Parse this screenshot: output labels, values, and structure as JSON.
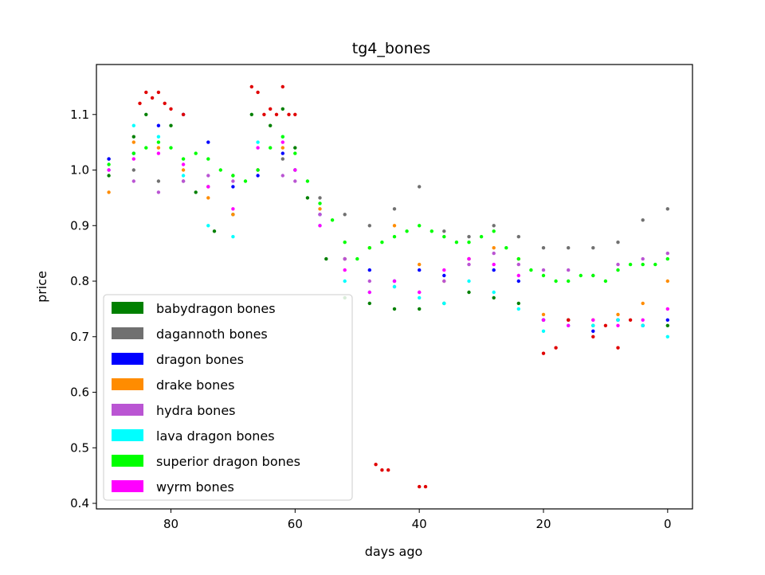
{
  "chart_data": {
    "type": "scatter",
    "title": "tg4_bones",
    "xlabel": "days ago",
    "ylabel": "price",
    "xlim": [
      92,
      -4
    ],
    "ylim": [
      0.39,
      1.19
    ],
    "x_reversed": true,
    "xticks": [
      80,
      60,
      40,
      20,
      0
    ],
    "xtick_labels": [
      "80",
      "60",
      "40",
      "20",
      "0"
    ],
    "yticks": [
      0.4,
      0.5,
      0.6,
      0.7,
      0.8,
      0.9,
      1.0,
      1.1
    ],
    "ytick_labels": [
      "0.4",
      "0.5",
      "0.6",
      "0.7",
      "0.8",
      "0.9",
      "1.0",
      "1.1"
    ],
    "grid": false,
    "legend_position": "lower-left",
    "legend": [
      "babydragon bones",
      "dagannoth bones",
      "dragon bones",
      "drake bones",
      "hydra bones",
      "lava dragon bones",
      "superior dragon bones",
      "wyrm bones"
    ],
    "series": [
      {
        "name": "babydragon bones",
        "color": "#008000",
        "x": [
          90,
          86,
          84,
          80,
          76,
          73,
          70,
          67,
          64,
          62,
          60,
          58,
          55,
          52,
          48,
          44,
          40,
          36,
          32,
          28,
          24,
          20,
          16,
          12,
          8,
          4,
          0
        ],
        "y": [
          0.99,
          1.06,
          1.1,
          1.08,
          0.96,
          0.89,
          0.92,
          1.1,
          1.08,
          1.11,
          1.04,
          0.95,
          0.84,
          0.77,
          0.76,
          0.75,
          0.75,
          0.76,
          0.78,
          0.77,
          0.76,
          0.73,
          0.73,
          0.72,
          0.73,
          0.72,
          0.72
        ]
      },
      {
        "name": "dagannoth bones",
        "color": "#707070",
        "x": [
          90,
          86,
          82,
          78,
          74,
          70,
          66,
          62,
          60,
          56,
          52,
          48,
          44,
          40,
          36,
          32,
          28,
          24,
          20,
          16,
          12,
          8,
          4,
          0
        ],
        "y": [
          1.02,
          1.0,
          0.98,
          0.98,
          0.97,
          0.99,
          1.0,
          1.02,
          1.0,
          0.95,
          0.92,
          0.9,
          0.93,
          0.97,
          0.89,
          0.88,
          0.9,
          0.88,
          0.86,
          0.86,
          0.86,
          0.87,
          0.91,
          0.93
        ]
      },
      {
        "name": "dragon bones",
        "color": "#0000ff",
        "x": [
          90,
          86,
          82,
          78,
          74,
          70,
          66,
          62,
          60,
          56,
          52,
          48,
          44,
          40,
          36,
          32,
          28,
          24,
          20,
          16,
          12,
          8,
          4,
          0
        ],
        "y": [
          1.02,
          1.03,
          1.08,
          1.1,
          1.05,
          0.97,
          0.99,
          1.03,
          1.0,
          0.92,
          0.84,
          0.82,
          0.8,
          0.82,
          0.81,
          0.84,
          0.82,
          0.8,
          0.73,
          0.73,
          0.71,
          0.73,
          0.72,
          0.73
        ]
      },
      {
        "name": "drake bones",
        "color": "#ff8c00",
        "x": [
          90,
          86,
          82,
          78,
          74,
          70,
          66,
          62,
          60,
          56,
          52,
          48,
          44,
          40,
          36,
          32,
          28,
          24,
          20,
          16,
          12,
          8,
          4,
          0
        ],
        "y": [
          0.96,
          1.05,
          1.04,
          1.0,
          0.95,
          0.92,
          1.0,
          1.04,
          1.0,
          0.93,
          0.84,
          0.86,
          0.9,
          0.83,
          0.8,
          0.84,
          0.86,
          0.84,
          0.74,
          0.73,
          0.73,
          0.74,
          0.76,
          0.8
        ]
      },
      {
        "name": "hydra bones",
        "color": "#ba55d3",
        "x": [
          90,
          86,
          82,
          78,
          74,
          70,
          66,
          62,
          60,
          56,
          52,
          48,
          44,
          40,
          36,
          32,
          28,
          24,
          20,
          16,
          12,
          8,
          4,
          0
        ],
        "y": [
          1.0,
          0.98,
          0.96,
          0.98,
          0.99,
          0.98,
          1.0,
          0.99,
          0.98,
          0.92,
          0.84,
          0.8,
          0.79,
          0.78,
          0.8,
          0.83,
          0.85,
          0.83,
          0.82,
          0.82,
          0.81,
          0.83,
          0.84,
          0.85
        ]
      },
      {
        "name": "lava dragon bones",
        "color": "#00ffff",
        "x": [
          90,
          86,
          82,
          78,
          74,
          70,
          66,
          62,
          60,
          56,
          52,
          48,
          44,
          40,
          36,
          32,
          28,
          24,
          20,
          16,
          12,
          8,
          4,
          0
        ],
        "y": [
          1.0,
          1.08,
          1.06,
          0.99,
          0.9,
          0.88,
          1.05,
          1.06,
          1.0,
          0.9,
          0.8,
          0.78,
          0.79,
          0.77,
          0.76,
          0.8,
          0.78,
          0.75,
          0.71,
          0.72,
          0.72,
          0.73,
          0.72,
          0.7
        ]
      },
      {
        "name": "superior dragon bones",
        "color": "#00ff00",
        "x": [
          90,
          86,
          84,
          82,
          80,
          78,
          76,
          74,
          72,
          70,
          68,
          66,
          64,
          62,
          60,
          58,
          56,
          54,
          52,
          50,
          48,
          46,
          44,
          42,
          40,
          38,
          36,
          34,
          32,
          30,
          28,
          26,
          24,
          22,
          20,
          18,
          16,
          14,
          12,
          10,
          8,
          6,
          4,
          2,
          0
        ],
        "y": [
          1.01,
          1.03,
          1.04,
          1.05,
          1.04,
          1.02,
          1.03,
          1.02,
          1.0,
          0.99,
          0.98,
          1.0,
          1.04,
          1.06,
          1.03,
          0.98,
          0.94,
          0.91,
          0.87,
          0.84,
          0.86,
          0.87,
          0.88,
          0.89,
          0.9,
          0.89,
          0.88,
          0.87,
          0.87,
          0.88,
          0.89,
          0.86,
          0.84,
          0.82,
          0.81,
          0.8,
          0.8,
          0.81,
          0.81,
          0.8,
          0.82,
          0.83,
          0.83,
          0.83,
          0.84
        ]
      },
      {
        "name": "wyrm bones",
        "color": "#ff00ff",
        "x": [
          90,
          86,
          82,
          78,
          74,
          70,
          66,
          62,
          60,
          56,
          52,
          48,
          44,
          40,
          36,
          32,
          28,
          24,
          20,
          16,
          12,
          8,
          4,
          0
        ],
        "y": [
          1.0,
          1.02,
          1.03,
          1.01,
          0.97,
          0.93,
          1.04,
          1.05,
          1.0,
          0.9,
          0.82,
          0.78,
          0.8,
          0.78,
          0.82,
          0.84,
          0.83,
          0.81,
          0.73,
          0.72,
          0.73,
          0.72,
          0.73,
          0.75
        ]
      },
      {
        "name": "",
        "color": "#e00000",
        "x": [
          85,
          84,
          83,
          82,
          81,
          80,
          78,
          67,
          66,
          65,
          64,
          63,
          62,
          61,
          60,
          47,
          46,
          45,
          40,
          39,
          20,
          18,
          16,
          12,
          10,
          8,
          6
        ],
        "y": [
          1.12,
          1.14,
          1.13,
          1.14,
          1.12,
          1.11,
          1.1,
          1.15,
          1.14,
          1.1,
          1.11,
          1.1,
          1.15,
          1.1,
          1.1,
          0.47,
          0.46,
          0.46,
          0.43,
          0.43,
          0.67,
          0.68,
          0.73,
          0.7,
          0.72,
          0.68,
          0.73
        ]
      }
    ]
  }
}
